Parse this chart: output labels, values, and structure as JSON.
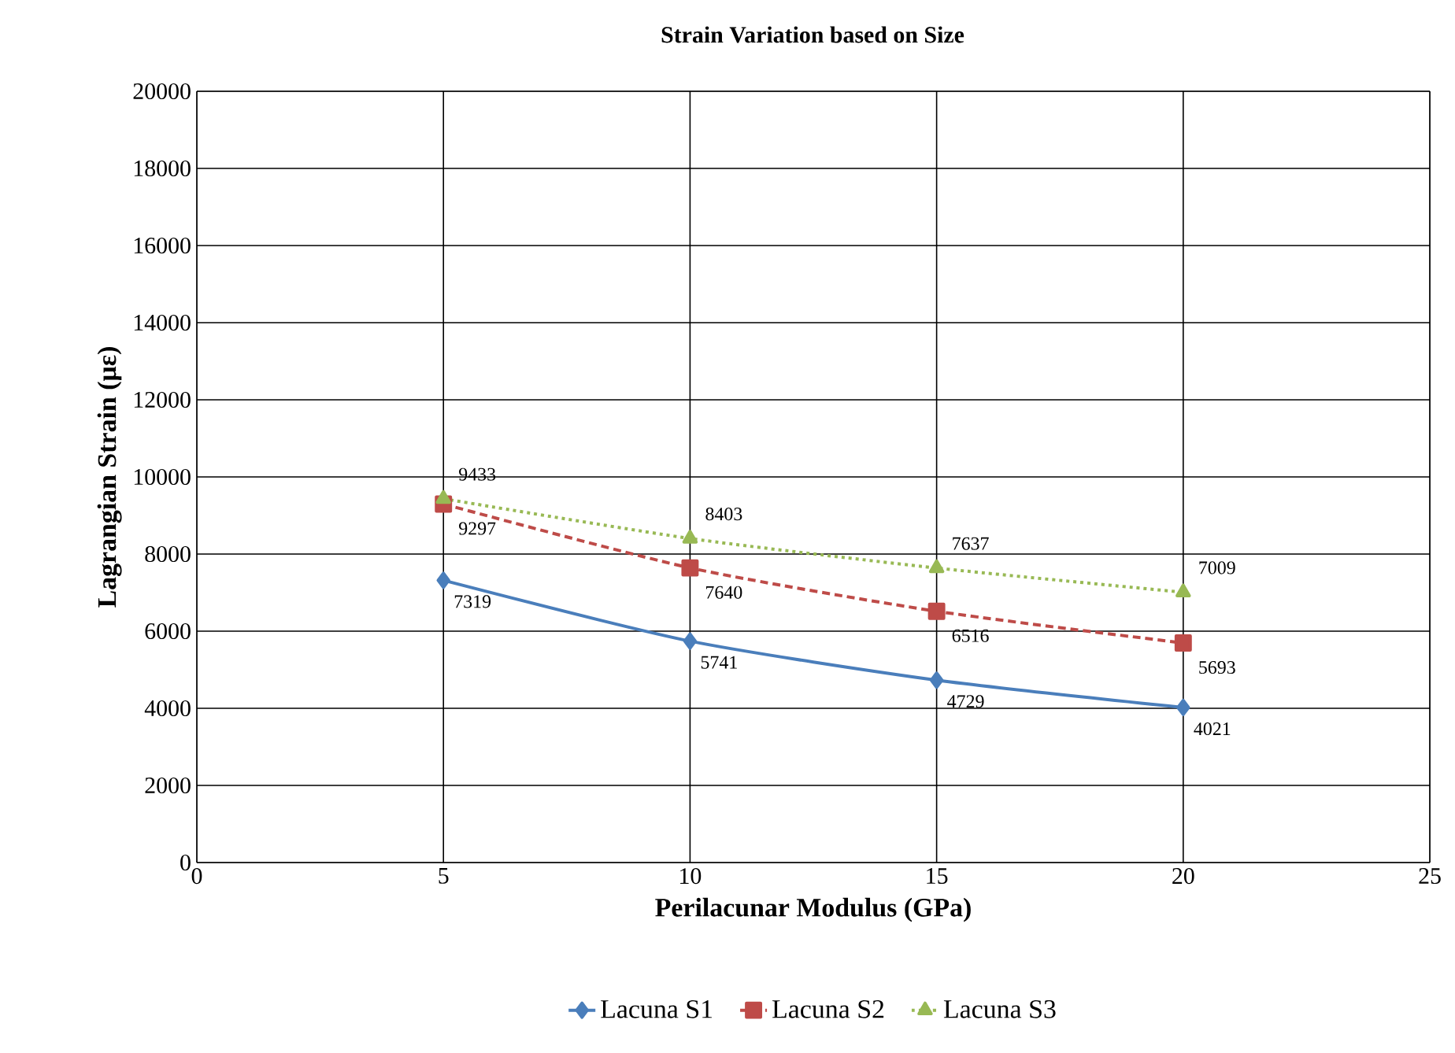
{
  "chart_data": {
    "type": "line",
    "title": "Strain Variation based on Size",
    "xlabel": "Perilacunar Modulus (GPa)",
    "ylabel": "Lagrangian Strain (με)",
    "x": [
      5,
      10,
      15,
      20
    ],
    "series": [
      {
        "name": "Lacuna S1",
        "color": "#4a7ebb",
        "values": [
          7319,
          5741,
          4729,
          4021
        ],
        "marker": "diamond",
        "line_style": "solid"
      },
      {
        "name": "Lacuna S2",
        "color": "#be4b48",
        "values": [
          9297,
          7640,
          6516,
          5693
        ],
        "marker": "square",
        "line_style": "dashed"
      },
      {
        "name": "Lacuna S3",
        "color": "#98b954",
        "values": [
          9433,
          8403,
          7637,
          7009
        ],
        "marker": "triangle",
        "line_style": "dotted"
      }
    ],
    "xlim": [
      0,
      25
    ],
    "xticks": [
      0,
      5,
      10,
      15,
      20,
      25
    ],
    "ylim": [
      0,
      20000
    ],
    "yticks": [
      0,
      2000,
      4000,
      6000,
      8000,
      10000,
      12000,
      14000,
      16000,
      18000,
      20000
    ],
    "grid": true,
    "legend": "bottom",
    "data_labels": true
  }
}
